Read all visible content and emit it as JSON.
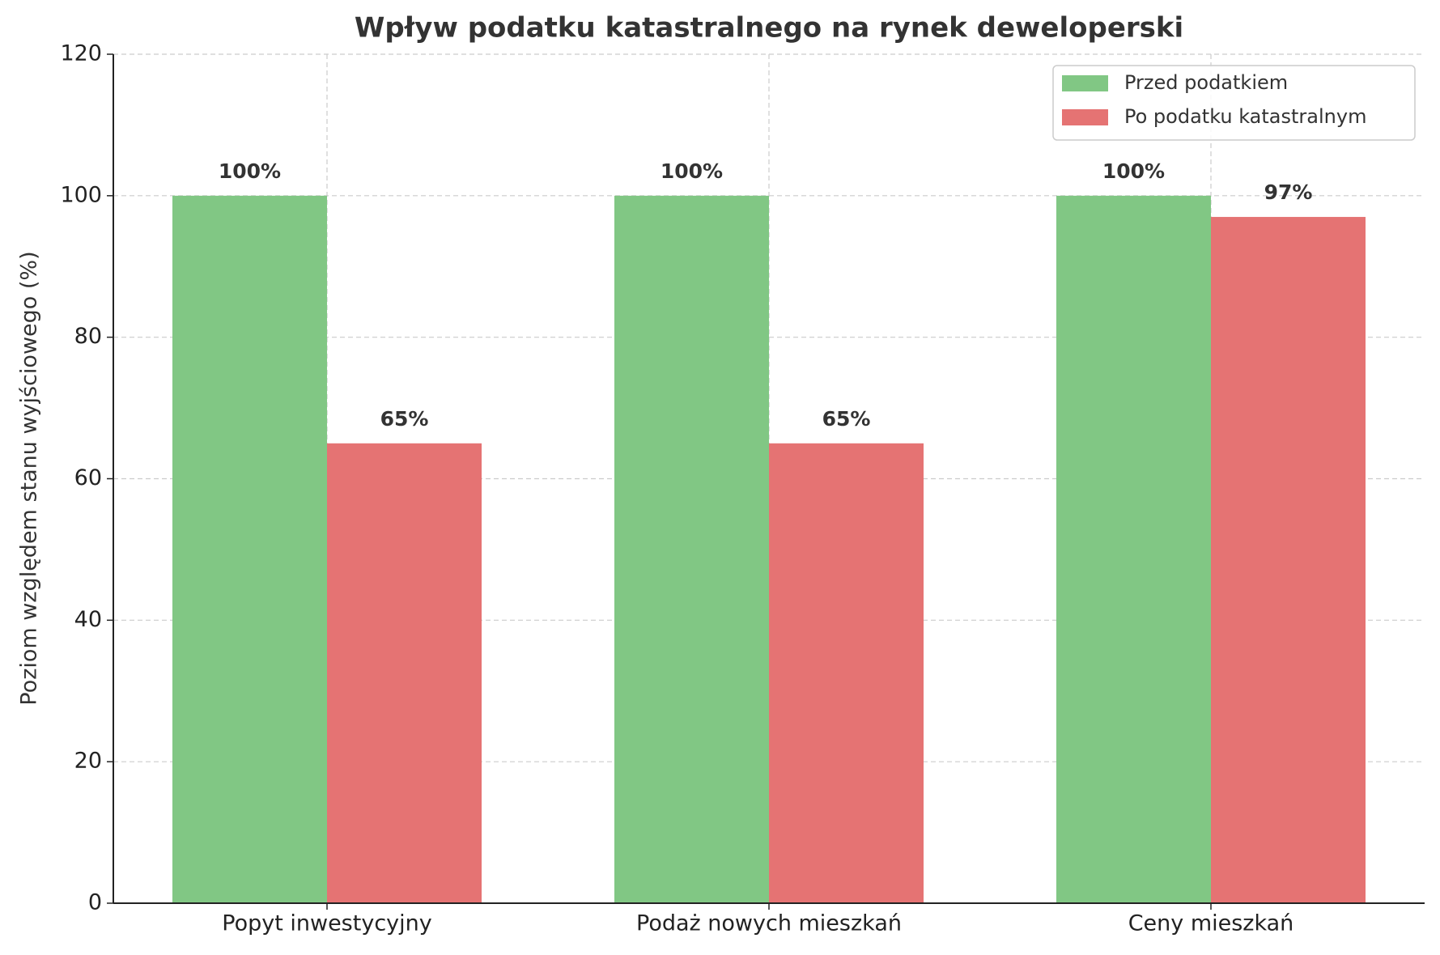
{
  "chart_data": {
    "type": "bar",
    "title": "Wpływ podatku katastralnego na rynek deweloperski",
    "ylabel": "Poziom względem stanu wyjściowego (%)",
    "categories": [
      "Popyt inwestycyjny",
      "Podaż nowych mieszkań",
      "Ceny mieszkań"
    ],
    "series": [
      {
        "name": "Przed podatkiem",
        "color": "#81c784",
        "values": [
          100,
          100,
          100
        ],
        "value_labels": [
          "100%",
          "100%",
          "100%"
        ]
      },
      {
        "name": "Po podatku katastralnym",
        "color": "#e57373",
        "values": [
          65,
          65,
          97
        ],
        "value_labels": [
          "65%",
          "65%",
          "97%"
        ]
      }
    ],
    "ylim": [
      0,
      120
    ],
    "yticks": [
      0,
      20,
      40,
      60,
      80,
      100,
      120
    ],
    "grid": true,
    "legend": "upper right"
  }
}
